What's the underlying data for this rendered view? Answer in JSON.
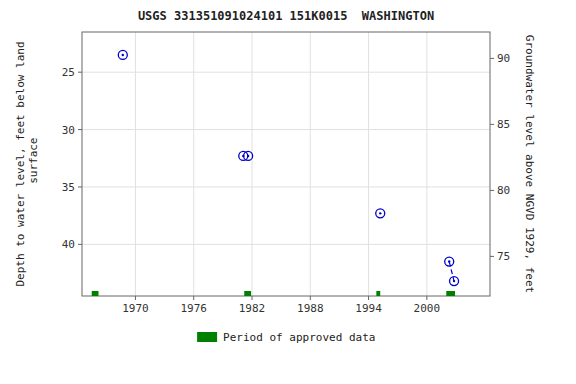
{
  "chart_data": {
    "type": "scatter",
    "title": "USGS 331351091024101 151K0015  WASHINGTON",
    "ylabel": "Depth to water level, feet below land\n surface",
    "y2label": "Groundwater level above NGVD 1929, feet",
    "xlim": [
      1964.5,
      2006.5
    ],
    "ylim": [
      44.5,
      21.5
    ],
    "y2lim": [
      72.0,
      92.0
    ],
    "xticks": [
      1970,
      1976,
      1982,
      1988,
      1994,
      2000
    ],
    "yticks": [
      25,
      30,
      35,
      40
    ],
    "y2ticks": [
      75,
      80,
      85,
      90
    ],
    "grid": true,
    "legend": "bottom",
    "series": [
      {
        "type": "scatter",
        "marker": "circle",
        "color": "#0000cc",
        "x": [
          1968.7,
          1981.1,
          1981.6,
          1995.2,
          2002.3,
          2002.8
        ],
        "values": [
          23.5,
          32.3,
          32.3,
          37.3,
          41.5,
          43.2
        ]
      },
      {
        "type": "line",
        "line_style": "dashed",
        "color": "#0000cc",
        "x": [
          2002.3,
          2002.8
        ],
        "values": [
          41.5,
          43.2
        ]
      },
      {
        "type": "bar",
        "name": "Period of approved data",
        "color": "#008000",
        "x": [
          1965.5,
          1981.2,
          1994.8,
          2002.0
        ],
        "widths": [
          0.7,
          0.7,
          0.4,
          0.9
        ]
      }
    ]
  }
}
